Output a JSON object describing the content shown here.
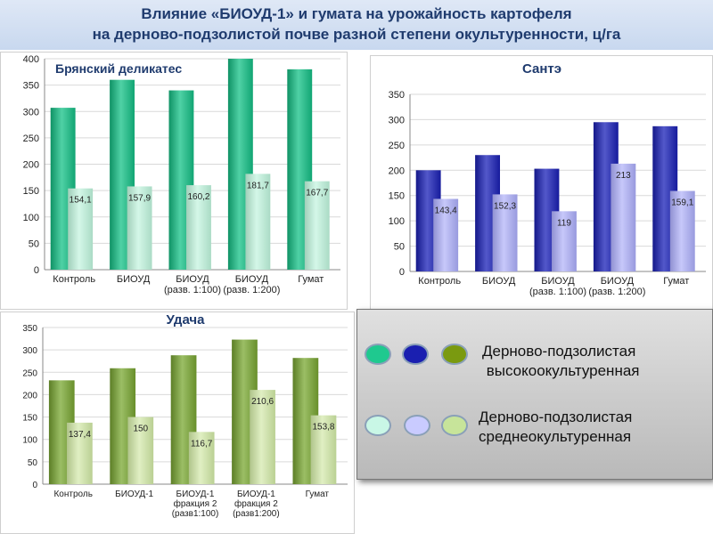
{
  "page": {
    "title_line1": "Влияние «БИОУД-1» и гумата на урожайность картофеля",
    "title_line2": "на дерново-подзолистой  почве разной степени окультуренности, ц/га"
  },
  "legend": {
    "high_label_1": "Дерново-подзолистая",
    "high_label_2": " высокоокультуренная",
    "medium_label_1": "Дерново-подзолистая",
    "medium_label_2": "среднеокультуренная",
    "high_colors": [
      "#1fc98f",
      "#1a1fb0",
      "#7a9a10"
    ],
    "medium_colors": [
      "#c9f7e6",
      "#c9cbff",
      "#c7e49a"
    ]
  },
  "chart_data": [
    {
      "type": "bar",
      "title": "Брянский деликатес",
      "categories": [
        [
          "Контроль"
        ],
        [
          "БИОУД"
        ],
        [
          "БИОУД",
          "(разв. 1:100)"
        ],
        [
          "БИОУД",
          "(разв. 1:200)"
        ],
        [
          "Гумат"
        ]
      ],
      "series": [
        {
          "values": [
            307,
            360,
            340,
            400,
            380
          ],
          "color": "#14c287"
        },
        {
          "values": [
            154.1,
            157.9,
            160.2,
            181.7,
            167.7
          ],
          "labels": [
            "154,1",
            "157,9",
            "160,2",
            "181,7",
            "167,7"
          ],
          "color": "#bdf3db"
        }
      ],
      "ylim": [
        0,
        400
      ],
      "yticks": [
        0,
        50,
        100,
        150,
        200,
        250,
        300,
        350,
        400
      ],
      "grid": true
    },
    {
      "type": "bar",
      "title": "Сантэ",
      "categories": [
        [
          "Контроль"
        ],
        [
          "БИОУД"
        ],
        [
          "БИОУД",
          "(разв. 1:100)"
        ],
        [
          "БИОУД",
          "(разв. 1:200)"
        ],
        [
          "Гумат"
        ]
      ],
      "series": [
        {
          "values": [
            200,
            230,
            203,
            295,
            287
          ],
          "color": "#1a20b8"
        },
        {
          "values": [
            143.4,
            152.3,
            119,
            213,
            159.1
          ],
          "labels": [
            "143,4",
            "152,3",
            "119",
            "213",
            "159,1"
          ],
          "color": "#a9abf7"
        }
      ],
      "ylim": [
        0,
        350
      ],
      "yticks": [
        0,
        50,
        100,
        150,
        200,
        250,
        300,
        350
      ],
      "grid": true
    },
    {
      "type": "bar",
      "title": "Удача",
      "categories": [
        [
          "Контроль"
        ],
        [
          "БИОУД-1"
        ],
        [
          "БИОУД-1",
          "фракция 2",
          "(разв1:100)"
        ],
        [
          "БИОУД-1",
          "фракция 2",
          "(разв1:200)"
        ],
        [
          "Гумат"
        ]
      ],
      "series": [
        {
          "values": [
            232,
            259,
            288,
            323,
            282
          ],
          "color": "#7aa832"
        },
        {
          "values": [
            137.4,
            150,
            116.7,
            210.6,
            153.8
          ],
          "labels": [
            "137,4",
            "150",
            "116,7",
            "210,6",
            "153,8"
          ],
          "color": "#cfe7a3"
        }
      ],
      "ylim": [
        0,
        350
      ],
      "yticks": [
        0,
        50,
        100,
        150,
        200,
        250,
        300,
        350
      ],
      "grid": true
    }
  ]
}
